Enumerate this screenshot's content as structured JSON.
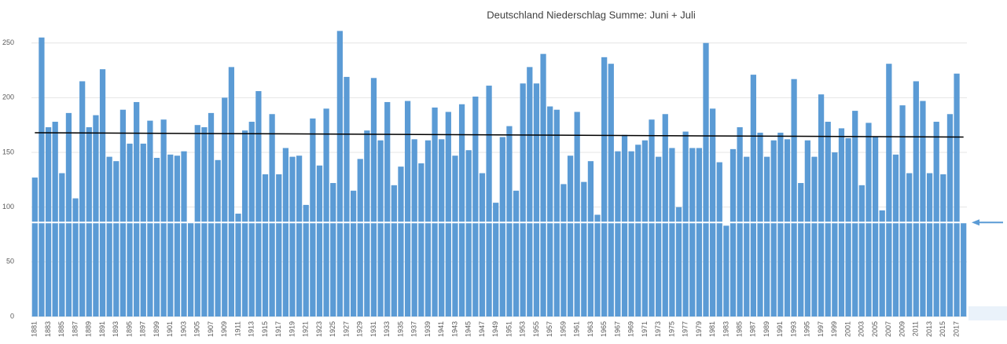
{
  "chart_data": {
    "type": "bar",
    "title": "Deutschland Niederschlag Summe: Juni + Juli",
    "categories": [
      "1881",
      null,
      "1883",
      null,
      "1885",
      null,
      "1887",
      null,
      "1889",
      null,
      "1891",
      null,
      "1893",
      null,
      "1895",
      null,
      "1897",
      null,
      "1899",
      null,
      "1901",
      null,
      "1903",
      null,
      "1905",
      null,
      "1907",
      null,
      "1909",
      null,
      "1911",
      null,
      "1913",
      null,
      "1915",
      null,
      "1917",
      null,
      "1919",
      null,
      "1921",
      null,
      "1923",
      null,
      "1925",
      null,
      "1927",
      null,
      "1929",
      null,
      "1931",
      null,
      "1933",
      null,
      "1935",
      null,
      "1937",
      null,
      "1939",
      null,
      "1941",
      null,
      "1943",
      null,
      "1945",
      null,
      "1947",
      null,
      "1949",
      null,
      "1951",
      null,
      "1953",
      null,
      "1955",
      null,
      "1957",
      null,
      "1959",
      null,
      "1961",
      null,
      "1963",
      null,
      "1965",
      null,
      "1967",
      null,
      "1969",
      null,
      "1971",
      null,
      "1973",
      null,
      "1975",
      null,
      "1977",
      null,
      "1979",
      null,
      "1981",
      null,
      "1983",
      null,
      "1985",
      null,
      "1987",
      null,
      "1989",
      null,
      "1991",
      null,
      "1993",
      null,
      "1995",
      null,
      "1997",
      null,
      "1999",
      null,
      "2001",
      null,
      "2003",
      null,
      "2005",
      null,
      "2007",
      null,
      "2009",
      null,
      "2011",
      null,
      "2013",
      null,
      "2015",
      null,
      "2017",
      null
    ],
    "values": [
      127,
      255,
      173,
      178,
      131,
      186,
      108,
      215,
      173,
      184,
      226,
      146,
      142,
      189,
      158,
      196,
      158,
      179,
      145,
      180,
      148,
      147,
      151,
      86,
      175,
      173,
      186,
      143,
      200,
      228,
      94,
      170,
      178,
      206,
      130,
      185,
      130,
      154,
      146,
      147,
      102,
      181,
      138,
      190,
      122,
      261,
      219,
      115,
      144,
      170,
      218,
      161,
      196,
      120,
      137,
      197,
      162,
      140,
      161,
      191,
      162,
      187,
      147,
      194,
      152,
      201,
      131,
      211,
      104,
      164,
      174,
      115,
      213,
      228,
      213,
      240,
      192,
      189,
      121,
      147,
      187,
      123,
      142,
      93,
      237,
      231,
      151,
      166,
      151,
      157,
      161,
      180,
      146,
      185,
      154,
      100,
      169,
      154,
      154,
      250,
      190,
      141,
      83,
      153,
      173,
      146,
      221,
      168,
      146,
      161,
      168,
      162,
      217,
      122,
      161,
      146,
      203,
      178,
      150,
      172,
      163,
      188,
      120,
      177,
      164,
      97,
      231,
      148,
      193,
      131,
      215,
      197,
      131,
      178,
      130,
      185,
      222,
      86
    ],
    "color": "#5b9bd5",
    "ylim": [
      0,
      262
    ],
    "yticks": [
      0,
      50,
      100,
      150,
      200,
      250
    ],
    "grid": true,
    "trend": [
      168,
      164
    ],
    "trend_color": "#000000",
    "reference_line": 86,
    "reference_color": "#ffffff",
    "arrow_color": "#5b9bd5"
  }
}
